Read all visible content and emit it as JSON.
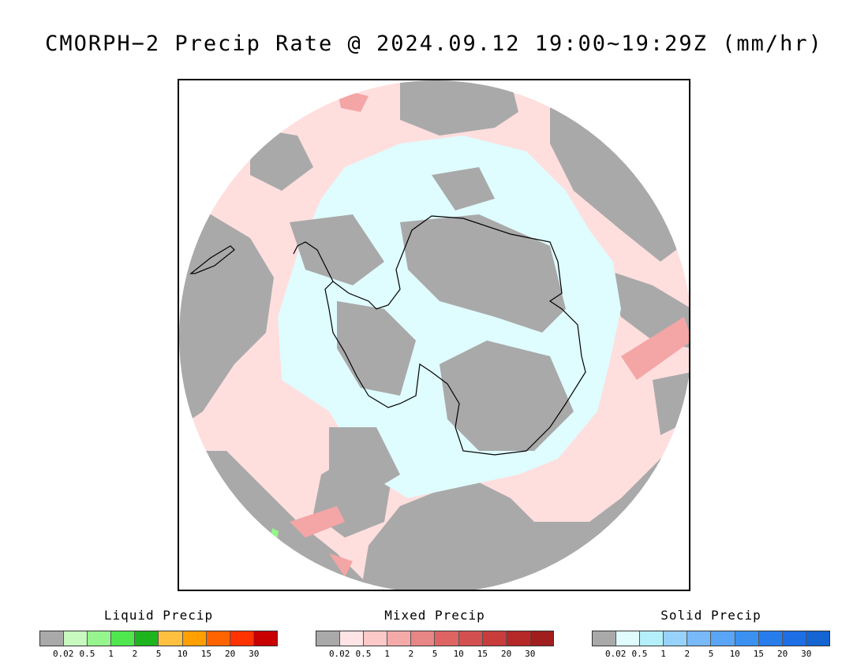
{
  "title": "CMORPH−2 Precip Rate @ 2024.09.12 19:00~19:29Z (mm/hr)",
  "map": {
    "projection": "south-polar-stereographic",
    "colors": {
      "no_precip_gray": "#a9a9a9",
      "mixed_light": "#ffdede",
      "solid_light": "#dffcff",
      "mixed_heavier": "#f4a5a5",
      "coastline": "#000000"
    }
  },
  "legends": [
    {
      "title": "Liquid Precip",
      "colors": [
        "#a9a9a9",
        "#c8fac0",
        "#96f58c",
        "#50e650",
        "#1eb41e",
        "#ffc040",
        "#ffa000",
        "#ff6400",
        "#ff3200",
        "#c80000"
      ],
      "ticks": [
        "0.02",
        "0.5",
        "1",
        "2",
        "5",
        "10",
        "15",
        "20",
        "30"
      ]
    },
    {
      "title": "Mixed Precip",
      "colors": [
        "#a9a9a9",
        "#ffe4e6",
        "#fcc8c8",
        "#f5aaaa",
        "#e88585",
        "#de6464",
        "#d25050",
        "#c83c3c",
        "#b42828",
        "#a01e1e"
      ],
      "ticks": [
        "0.02",
        "0.5",
        "1",
        "2",
        "5",
        "10",
        "15",
        "20",
        "30"
      ]
    },
    {
      "title": "Solid Precip",
      "colors": [
        "#a9a9a9",
        "#e0fcff",
        "#b4f0fc",
        "#96d2fa",
        "#78b9fa",
        "#5aa5f5",
        "#3c91f0",
        "#287dec",
        "#1e6ee6",
        "#1464d2"
      ],
      "ticks": [
        "0.02",
        "0.5",
        "1",
        "2",
        "5",
        "10",
        "15",
        "20",
        "30"
      ]
    }
  ]
}
